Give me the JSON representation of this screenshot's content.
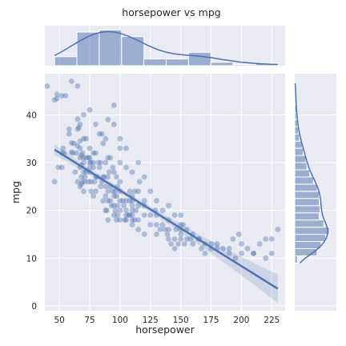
{
  "chart_data": {
    "type": "scatter",
    "title": "horsepower vs mpg",
    "xlabel": "horsepower",
    "ylabel": "mpg",
    "xlim": [
      38,
      236
    ],
    "ylim": [
      -1,
      48.6
    ],
    "x_ticks": [
      50,
      75,
      100,
      125,
      150,
      175,
      200,
      225
    ],
    "y_ticks": [
      0,
      10,
      20,
      30,
      40
    ],
    "grid": true,
    "colors": {
      "marker": "#4c72b0",
      "background": "#eaeaf2",
      "grid": "#ffffff"
    },
    "regression": {
      "x": [
        46,
        230
      ],
      "y": [
        32.7,
        3.6
      ]
    },
    "points": [
      [
        46,
        26
      ],
      [
        46,
        43.1
      ],
      [
        48,
        43.4
      ],
      [
        48,
        44.3
      ],
      [
        49,
        29
      ],
      [
        52,
        29
      ],
      [
        52,
        32
      ],
      [
        52,
        44
      ],
      [
        53,
        33
      ],
      [
        54,
        32
      ],
      [
        58,
        36
      ],
      [
        58,
        37
      ],
      [
        60,
        32.2
      ],
      [
        60,
        34.1
      ],
      [
        61,
        32
      ],
      [
        62,
        34
      ],
      [
        63,
        28
      ],
      [
        64,
        32
      ],
      [
        65,
        26
      ],
      [
        65,
        33.5
      ],
      [
        65,
        37
      ],
      [
        65,
        39.1
      ],
      [
        66,
        37.3
      ],
      [
        67,
        25
      ],
      [
        67,
        29
      ],
      [
        67,
        31
      ],
      [
        67,
        33
      ],
      [
        67,
        34.5
      ],
      [
        67,
        38
      ],
      [
        68,
        25.5
      ],
      [
        68,
        27
      ],
      [
        68,
        29.5
      ],
      [
        68,
        31.5
      ],
      [
        69,
        26
      ],
      [
        69,
        32
      ],
      [
        70,
        24
      ],
      [
        70,
        28
      ],
      [
        70,
        30
      ],
      [
        70,
        31
      ],
      [
        70,
        35
      ],
      [
        71,
        27
      ],
      [
        71,
        26
      ],
      [
        72,
        28
      ],
      [
        72,
        31
      ],
      [
        72,
        35
      ],
      [
        74,
        31
      ],
      [
        74,
        26
      ],
      [
        75,
        28
      ],
      [
        75,
        29
      ],
      [
        75,
        30
      ],
      [
        75,
        31
      ],
      [
        75,
        33
      ],
      [
        76,
        24
      ],
      [
        76,
        26
      ],
      [
        76,
        30
      ],
      [
        78,
        29
      ],
      [
        78,
        30
      ],
      [
        78,
        32
      ],
      [
        78,
        23
      ],
      [
        79,
        26
      ],
      [
        80,
        32
      ],
      [
        80,
        27
      ],
      [
        80,
        24
      ],
      [
        81,
        27
      ],
      [
        82,
        30
      ],
      [
        83,
        29
      ],
      [
        83,
        36
      ],
      [
        84,
        30
      ],
      [
        84,
        25
      ],
      [
        85,
        26
      ],
      [
        86,
        27
      ],
      [
        86,
        34
      ],
      [
        86,
        22
      ],
      [
        87,
        27
      ],
      [
        88,
        23
      ],
      [
        88,
        20
      ],
      [
        88,
        25
      ],
      [
        88,
        30
      ],
      [
        88,
        35
      ],
      [
        89,
        20
      ],
      [
        90,
        31
      ],
      [
        90,
        27
      ],
      [
        90,
        24
      ],
      [
        90,
        22
      ],
      [
        90,
        18
      ],
      [
        91,
        28
      ],
      [
        92,
        22
      ],
      [
        92,
        25
      ],
      [
        92,
        31
      ],
      [
        93,
        21
      ],
      [
        94,
        29
      ],
      [
        94,
        24
      ],
      [
        95,
        19
      ],
      [
        95,
        23
      ],
      [
        95,
        21
      ],
      [
        95,
        28
      ],
      [
        95,
        38
      ],
      [
        96,
        24
      ],
      [
        96,
        20
      ],
      [
        97,
        18
      ],
      [
        97,
        23
      ],
      [
        97,
        27
      ],
      [
        98,
        25
      ],
      [
        98,
        21
      ],
      [
        98,
        19
      ],
      [
        100,
        18
      ],
      [
        100,
        20
      ],
      [
        100,
        22
      ],
      [
        100,
        24
      ],
      [
        100,
        26
      ],
      [
        100,
        30
      ],
      [
        100,
        33
      ],
      [
        102,
        22
      ],
      [
        103,
        21
      ],
      [
        104,
        18
      ],
      [
        105,
        18
      ],
      [
        105,
        20
      ],
      [
        105,
        22
      ],
      [
        105,
        19
      ],
      [
        105,
        29
      ],
      [
        107,
        19
      ],
      [
        108,
        22
      ],
      [
        108,
        19
      ],
      [
        108,
        24
      ],
      [
        110,
        17
      ],
      [
        110,
        19
      ],
      [
        110,
        20
      ],
      [
        110,
        21
      ],
      [
        110,
        22
      ],
      [
        110,
        23
      ],
      [
        110,
        18
      ],
      [
        112,
        18
      ],
      [
        112,
        24
      ],
      [
        113,
        20
      ],
      [
        115,
        16
      ],
      [
        115,
        18
      ],
      [
        115,
        21
      ],
      [
        115,
        24
      ],
      [
        116,
        26
      ],
      [
        120,
        15
      ],
      [
        120,
        19
      ],
      [
        120,
        21
      ],
      [
        120,
        22
      ],
      [
        125,
        17
      ],
      [
        125,
        19
      ],
      [
        129,
        20
      ],
      [
        130,
        15
      ],
      [
        130,
        17
      ],
      [
        130,
        19
      ],
      [
        133,
        16
      ],
      [
        135,
        17
      ],
      [
        137,
        16
      ],
      [
        139,
        15
      ],
      [
        140,
        14
      ],
      [
        140,
        16
      ],
      [
        140,
        18
      ],
      [
        142,
        13
      ],
      [
        145,
        12
      ],
      [
        145,
        14
      ],
      [
        146,
        16
      ],
      [
        148,
        13
      ],
      [
        150,
        14
      ],
      [
        150,
        15
      ],
      [
        150,
        16
      ],
      [
        150,
        19
      ],
      [
        152,
        17
      ],
      [
        153,
        13
      ],
      [
        155,
        14
      ],
      [
        158,
        14
      ],
      [
        160,
        13
      ],
      [
        165,
        14
      ],
      [
        167,
        12
      ],
      [
        170,
        13
      ],
      [
        175,
        13
      ],
      [
        180,
        12
      ],
      [
        190,
        12
      ],
      [
        193,
        14
      ],
      [
        198,
        15
      ],
      [
        200,
        11
      ],
      [
        210,
        11
      ],
      [
        215,
        13
      ],
      [
        220,
        14
      ],
      [
        225,
        14
      ],
      [
        230,
        16
      ],
      [
        40,
        46
      ],
      [
        55,
        44
      ],
      [
        60,
        47
      ],
      [
        65,
        46
      ],
      [
        70,
        40
      ],
      [
        75,
        41
      ],
      [
        80,
        38
      ],
      [
        85,
        36
      ],
      [
        90,
        39
      ],
      [
        95,
        42
      ],
      [
        100,
        35
      ],
      [
        105,
        33
      ],
      [
        110,
        28
      ],
      [
        115,
        30
      ],
      [
        120,
        27
      ],
      [
        125,
        24
      ],
      [
        130,
        22
      ],
      [
        135,
        20
      ],
      [
        140,
        21
      ],
      [
        145,
        19
      ],
      [
        150,
        17
      ],
      [
        155,
        16
      ],
      [
        160,
        15
      ],
      [
        165,
        14
      ],
      [
        170,
        11
      ],
      [
        175,
        12
      ],
      [
        180,
        13
      ],
      [
        185,
        12
      ],
      [
        190,
        11
      ],
      [
        195,
        10
      ],
      [
        200,
        13
      ],
      [
        205,
        12
      ],
      [
        210,
        11
      ],
      [
        220,
        10
      ],
      [
        225,
        11
      ]
    ],
    "marginal_x": {
      "bin_edges": [
        46,
        64.4,
        82.8,
        101.2,
        119.6,
        138,
        156.4,
        174.8,
        193.2,
        211.6,
        230
      ],
      "counts": [
        16,
        60,
        64,
        52,
        12,
        12,
        24,
        6,
        2,
        4
      ]
    },
    "marginal_y": {
      "bin_edges": [
        9,
        10.5,
        12,
        13.5,
        15,
        16.5,
        18,
        19.5,
        21,
        22.5,
        24,
        25.5,
        27,
        28.5,
        30,
        31.5,
        33,
        34.5,
        36,
        37.5,
        39,
        40.5,
        42,
        43.5,
        45,
        46.6
      ],
      "counts": [
        3,
        24,
        28,
        33,
        37,
        31,
        26,
        27,
        26,
        26,
        24,
        20,
        16,
        13,
        12,
        9,
        8,
        5,
        4,
        3,
        2,
        2,
        1,
        1,
        1
      ]
    }
  }
}
